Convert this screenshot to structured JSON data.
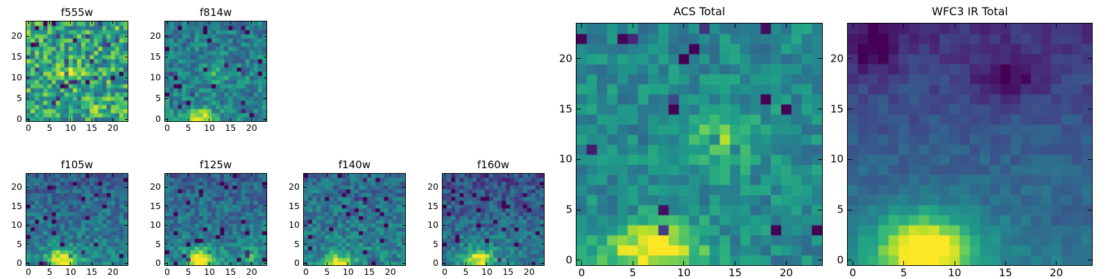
{
  "figure": {
    "background": "#ffffff",
    "axis_color": "#000000"
  },
  "chart_data": {
    "type": "heatmap",
    "colormap": "viridis",
    "grid_size": 24,
    "x_range": [
      0,
      24
    ],
    "y_range": [
      0,
      24
    ],
    "xticks": [
      0,
      5,
      10,
      15,
      20
    ],
    "yticks": [
      0,
      5,
      10,
      15,
      20
    ],
    "panels": [
      {
        "id": "f555w",
        "title": "f555w",
        "seed": 101,
        "base": 0.6,
        "noise": 0.27,
        "vgrad": 0.0,
        "speck": 0.07,
        "blobs": [
          {
            "x": 10,
            "y": 11,
            "sx": 2.0,
            "sy": 1.6,
            "amp": 0.28
          },
          {
            "x": 16,
            "y": 3,
            "sx": 1.2,
            "sy": 1.2,
            "amp": 0.18
          }
        ]
      },
      {
        "id": "f814w",
        "title": "f814w",
        "seed": 102,
        "base": 0.46,
        "noise": 0.17,
        "vgrad": 0.05,
        "speck": 0.04,
        "blobs": [
          {
            "x": 8,
            "y": 0,
            "sx": 2.2,
            "sy": 1.8,
            "amp": 0.55
          },
          {
            "x": 12,
            "y": 11,
            "sx": 2.2,
            "sy": 1.8,
            "amp": 0.2
          }
        ]
      },
      {
        "id": "f105w",
        "title": "f105w",
        "seed": 103,
        "base": 0.46,
        "noise": 0.15,
        "vgrad": 0.16,
        "speck": 0.05,
        "blobs": [
          {
            "x": 8,
            "y": 1,
            "sx": 2.6,
            "sy": 2.0,
            "amp": 0.58
          }
        ]
      },
      {
        "id": "f125w",
        "title": "f125w",
        "seed": 104,
        "base": 0.45,
        "noise": 0.15,
        "vgrad": 0.14,
        "speck": 0.05,
        "blobs": [
          {
            "x": 8,
            "y": 1,
            "sx": 2.6,
            "sy": 2.0,
            "amp": 0.58
          },
          {
            "x": 20,
            "y": 2,
            "sx": 1.5,
            "sy": 1.5,
            "amp": 0.2
          }
        ]
      },
      {
        "id": "f140w",
        "title": "f140w",
        "seed": 105,
        "base": 0.46,
        "noise": 0.16,
        "vgrad": 0.12,
        "speck": 0.05,
        "blobs": [
          {
            "x": 8,
            "y": 0,
            "sx": 2.4,
            "sy": 1.8,
            "amp": 0.55
          }
        ]
      },
      {
        "id": "f160w",
        "title": "f160w",
        "seed": 106,
        "base": 0.44,
        "noise": 0.16,
        "vgrad": 0.2,
        "speck": 0.06,
        "blobs": [
          {
            "x": 8,
            "y": 1,
            "sx": 2.6,
            "sy": 2.0,
            "amp": 0.58
          }
        ]
      },
      {
        "id": "acs_total",
        "title": "ACS Total",
        "seed": 107,
        "base": 0.47,
        "noise": 0.13,
        "vgrad": 0.0,
        "speck": 0.035,
        "blobs": [
          {
            "x": 7,
            "y": 1,
            "sx": 3.4,
            "sy": 2.0,
            "amp": 0.55
          },
          {
            "x": 14,
            "y": 12,
            "sx": 2.2,
            "sy": 2.0,
            "amp": 0.33
          }
        ]
      },
      {
        "id": "wfc3_ir_total",
        "title": "WFC3 IR Total",
        "seed": 108,
        "base": 0.44,
        "noise": 0.06,
        "vgrad": 0.3,
        "speck": 0.0,
        "blobs": [
          {
            "x": 7,
            "y": 1,
            "sx": 3.2,
            "sy": 2.4,
            "amp": 0.72
          },
          {
            "x": 15,
            "y": 18,
            "sx": 2.2,
            "sy": 1.4,
            "amp": -0.22
          },
          {
            "x": 2,
            "y": 21,
            "sx": 1.5,
            "sy": 2.0,
            "amp": -0.18
          },
          {
            "x": 21,
            "y": 3,
            "sx": 2.0,
            "sy": 2.0,
            "amp": -0.08
          }
        ]
      }
    ]
  }
}
